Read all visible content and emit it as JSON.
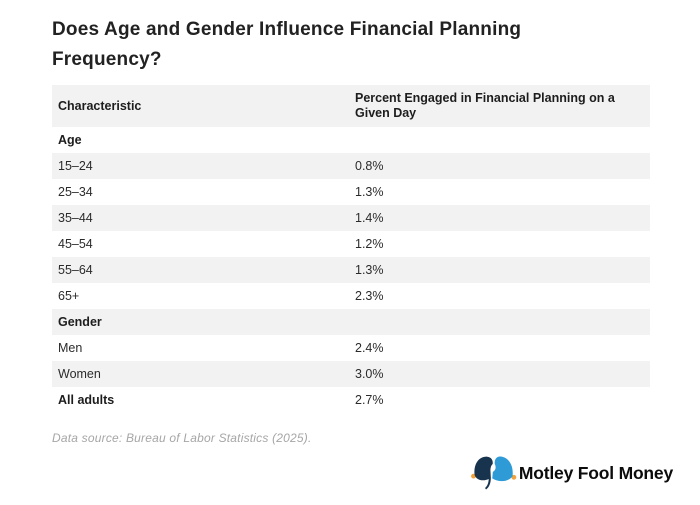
{
  "title": "Does Age and Gender Influence Financial Planning Frequency?",
  "table": {
    "columns": [
      "Characteristic",
      "Percent Engaged in Financial Planning on a Given Day"
    ],
    "rows": [
      {
        "label": "Age",
        "value": "",
        "type": "section"
      },
      {
        "label": "15–24",
        "value": "0.8%",
        "type": "data"
      },
      {
        "label": "25–34",
        "value": "1.3%",
        "type": "data"
      },
      {
        "label": "35–44",
        "value": "1.4%",
        "type": "data"
      },
      {
        "label": "45–54",
        "value": "1.2%",
        "type": "data"
      },
      {
        "label": "55–64",
        "value": "1.3%",
        "type": "data"
      },
      {
        "label": "65+",
        "value": "2.3%",
        "type": "data"
      },
      {
        "label": "Gender",
        "value": "",
        "type": "section"
      },
      {
        "label": "Men",
        "value": "2.4%",
        "type": "data"
      },
      {
        "label": "Women",
        "value": "3.0%",
        "type": "data"
      },
      {
        "label": "All adults",
        "value": "2.7%",
        "type": "total"
      }
    ],
    "stripe_color": "#f2f2f2"
  },
  "footnote": "Data source: Bureau of Labor Statistics (2025).",
  "logo": {
    "label": "Motley Fool Money",
    "icon": "jester-cap-icon",
    "colors": {
      "navy": "#17334E",
      "blue": "#2E9BD6",
      "gold": "#F2A33C",
      "text": "#0c0c0c"
    }
  },
  "chart_data": {
    "type": "table",
    "title": "Does Age and Gender Influence Financial Planning Frequency?",
    "columns": [
      "Characteristic",
      "Percent Engaged in Financial Planning on a Given Day"
    ],
    "unit": "%",
    "groups": [
      {
        "section": "Age",
        "categories": [
          "15–24",
          "25–34",
          "35–44",
          "45–54",
          "55–64",
          "65+"
        ],
        "values": [
          0.8,
          1.3,
          1.4,
          1.2,
          1.3,
          2.3
        ]
      },
      {
        "section": "Gender",
        "categories": [
          "Men",
          "Women"
        ],
        "values": [
          2.4,
          3.0
        ]
      }
    ],
    "total": {
      "category": "All adults",
      "value": 2.7
    },
    "source": "Data source: Bureau of Labor Statistics (2025)."
  }
}
